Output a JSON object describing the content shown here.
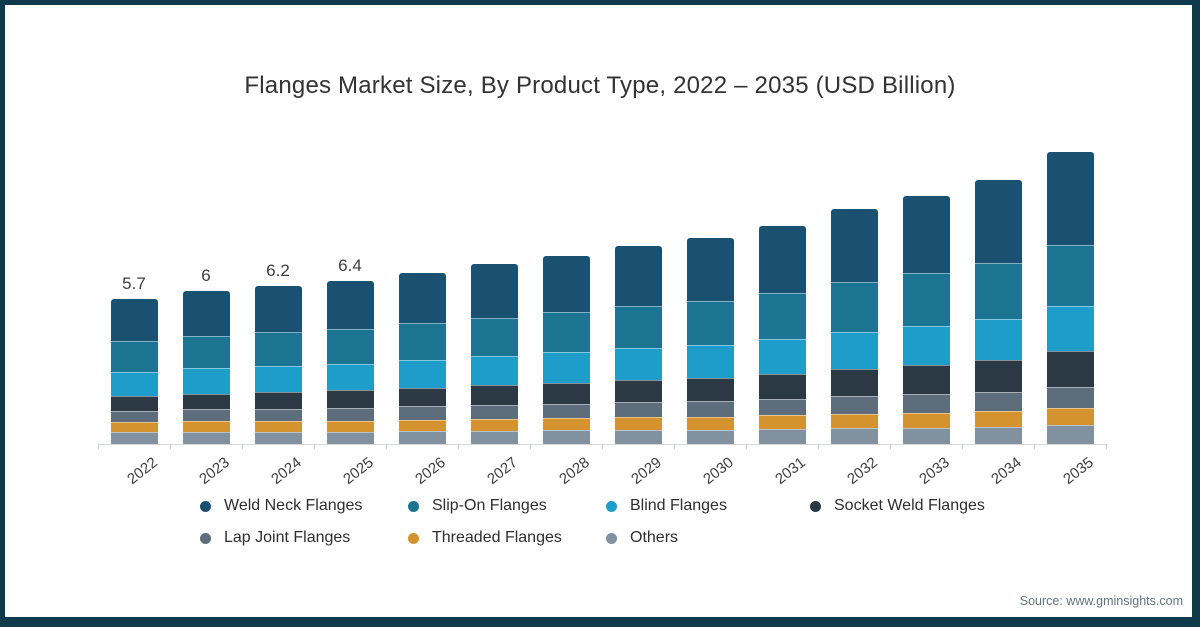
{
  "frame": {
    "border_color": "#0e3a4c",
    "background": "#ffffff"
  },
  "title": "Flanges Market Size, By Product Type, 2022 – 2035 (USD Billion)",
  "source": "Source: www.gminsights.com",
  "colors": {
    "weld_neck": "#1b5170",
    "slip_on": "#1b7492",
    "blind": "#1f9dca",
    "socket_weld": "#2b3945",
    "lap_joint": "#5d6d7c",
    "threaded": "#d5932f",
    "others": "#8191a0",
    "axis": "#d6d6d6",
    "label_text": "#3d3d3d"
  },
  "chart_data": {
    "type": "bar",
    "stacked": true,
    "title": "Flanges Market Size, By Product Type, 2022 – 2035 (USD Billion)",
    "xlabel": "",
    "ylabel": "",
    "grid": false,
    "legend_position": "bottom",
    "categories": [
      "2022",
      "2023",
      "2024",
      "2025",
      "2026",
      "2027",
      "2028",
      "2029",
      "2030",
      "2031",
      "2032",
      "2033",
      "2034",
      "2035"
    ],
    "totals": [
      5.7,
      6,
      6.2,
      6.4,
      6.75,
      7.1,
      7.4,
      7.8,
      8.1,
      8.6,
      9.25,
      9.8,
      10.4,
      11.5
    ],
    "total_labels": [
      "5.7",
      "6",
      "6.2",
      "6.4",
      "",
      "",
      "",
      "",
      "",
      "",
      "",
      "",
      "",
      ""
    ],
    "series": [
      {
        "name": "Weld Neck Flanges",
        "color": "#1b5170",
        "values": [
          1.64,
          1.74,
          1.81,
          1.88,
          2.0,
          2.12,
          2.23,
          2.36,
          2.47,
          2.64,
          2.86,
          3.05,
          3.26,
          3.63
        ]
      },
      {
        "name": "Slip-On Flanges",
        "color": "#1b7492",
        "values": [
          1.22,
          1.28,
          1.32,
          1.36,
          1.44,
          1.51,
          1.57,
          1.66,
          1.72,
          1.83,
          1.97,
          2.08,
          2.21,
          2.43
        ]
      },
      {
        "name": "Blind Flanges",
        "color": "#1f9dca",
        "values": [
          0.96,
          1.0,
          1.03,
          1.05,
          1.1,
          1.15,
          1.2,
          1.25,
          1.29,
          1.36,
          1.45,
          1.53,
          1.61,
          1.77
        ]
      },
      {
        "name": "Socket Weld Flanges",
        "color": "#2b3945",
        "values": [
          0.58,
          0.62,
          0.65,
          0.68,
          0.73,
          0.77,
          0.82,
          0.88,
          0.92,
          0.99,
          1.08,
          1.16,
          1.25,
          1.4
        ]
      },
      {
        "name": "Lap Joint Flanges",
        "color": "#5d6d7c",
        "values": [
          0.46,
          0.48,
          0.49,
          0.51,
          0.53,
          0.55,
          0.57,
          0.59,
          0.61,
          0.64,
          0.69,
          0.72,
          0.76,
          0.83
        ]
      },
      {
        "name": "Threaded Flanges",
        "color": "#d5932f",
        "values": [
          0.39,
          0.41,
          0.42,
          0.43,
          0.44,
          0.46,
          0.48,
          0.5,
          0.51,
          0.53,
          0.57,
          0.59,
          0.62,
          0.68
        ]
      },
      {
        "name": "Others",
        "color": "#8191a0",
        "values": [
          0.46,
          0.48,
          0.49,
          0.49,
          0.51,
          0.53,
          0.54,
          0.56,
          0.57,
          0.6,
          0.63,
          0.65,
          0.68,
          0.74
        ]
      }
    ]
  },
  "legend": {
    "row_breaks": [
      4,
      3
    ]
  }
}
